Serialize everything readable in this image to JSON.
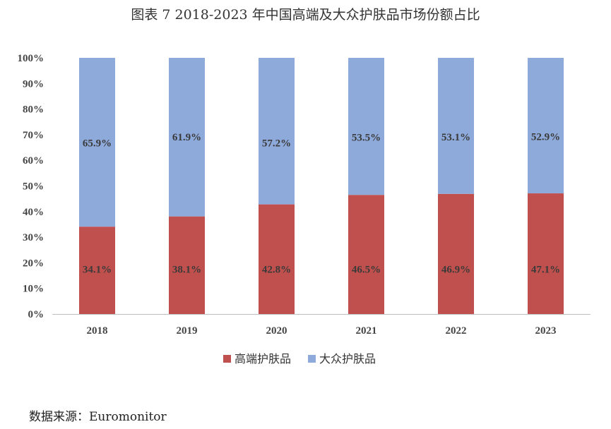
{
  "chart_data": {
    "type": "bar",
    "stacked": true,
    "title": "图表 7 2018-2023 年中国高端及大众护肤品市场份额占比",
    "categories": [
      "2018",
      "2019",
      "2020",
      "2021",
      "2022",
      "2023"
    ],
    "series": [
      {
        "name": "高端护肤品",
        "color": "#c0504d",
        "values": [
          34.1,
          38.1,
          42.8,
          46.5,
          46.9,
          47.1
        ]
      },
      {
        "name": "大众护肤品",
        "color": "#8eaadb",
        "values": [
          65.9,
          61.9,
          57.2,
          53.5,
          53.1,
          52.9
        ]
      }
    ],
    "data_labels": [
      "34.1%",
      "38.1%",
      "42.8%",
      "46.5%",
      "46.9%",
      "47.1%",
      "65.9%",
      "61.9%",
      "57.2%",
      "53.5%",
      "53.1%",
      "52.9%"
    ],
    "y_ticks": [
      "0%",
      "10%",
      "20%",
      "30%",
      "40%",
      "50%",
      "60%",
      "70%",
      "80%",
      "90%",
      "100%"
    ],
    "ylim": [
      0,
      100
    ],
    "grid": false,
    "legend_position": "bottom"
  },
  "source": "数据来源：Euromonitor"
}
